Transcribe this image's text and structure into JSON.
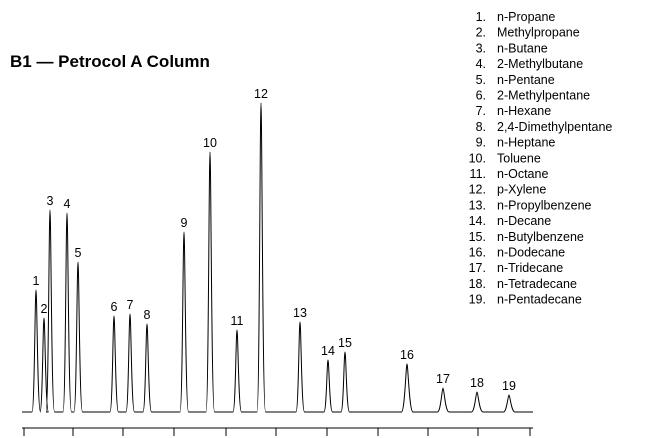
{
  "title": "B1 — Petrocol A Column",
  "peaks": [
    "1",
    "2",
    "3",
    "4",
    "5",
    "6",
    "7",
    "8",
    "9",
    "10",
    "11",
    "12",
    "13",
    "14",
    "15",
    "16",
    "17",
    "18",
    "19"
  ],
  "legend": [
    {
      "number": "1.",
      "name": "n-Propane"
    },
    {
      "number": "2.",
      "name": "Methylpropane"
    },
    {
      "number": "3.",
      "name": "n-Butane"
    },
    {
      "number": "4.",
      "name": "2-Methylbutane"
    },
    {
      "number": "5.",
      "name": "n-Pentane"
    },
    {
      "number": "6.",
      "name": "2-Methylpentane"
    },
    {
      "number": "7.",
      "name": "n-Hexane"
    },
    {
      "number": "8.",
      "name": "2,4-Dimethylpentane"
    },
    {
      "number": "9.",
      "name": "n-Heptane"
    },
    {
      "number": "10.",
      "name": "Toluene"
    },
    {
      "number": "11.",
      "name": "n-Octane"
    },
    {
      "number": "12.",
      "name": "p-Xylene"
    },
    {
      "number": "13.",
      "name": "n-Propylbenzene"
    },
    {
      "number": "14.",
      "name": "n-Decane"
    },
    {
      "number": "15.",
      "name": "n-Butylbenzene"
    },
    {
      "number": "16.",
      "name": "n-Dodecane"
    },
    {
      "number": "17.",
      "name": "n-Tridecane"
    },
    {
      "number": "18.",
      "name": "n-Tetradecane"
    },
    {
      "number": "19.",
      "name": "n-Pentadecane"
    }
  ]
}
